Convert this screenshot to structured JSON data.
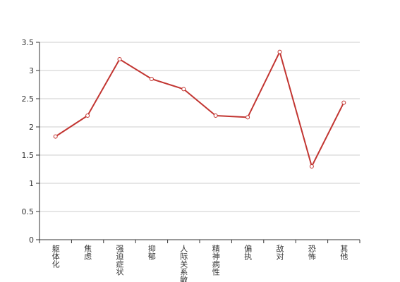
{
  "chart_data": {
    "type": "line",
    "categories": [
      "躯体化",
      "焦虑",
      "强迫症状",
      "抑郁",
      "人际关系敏感",
      "精神病性",
      "偏执",
      "敌对",
      "恐怖",
      "其他"
    ],
    "series": [
      {
        "color": "#c23531",
        "values": [
          1.83,
          2.2,
          3.2,
          2.85,
          2.67,
          2.2,
          2.17,
          3.33,
          1.3,
          2.43
        ]
      }
    ],
    "ylim": [
      0,
      3.5
    ],
    "yticks": [
      0,
      0.5,
      1,
      1.5,
      2,
      2.5,
      3,
      3.5
    ],
    "grid": true
  }
}
